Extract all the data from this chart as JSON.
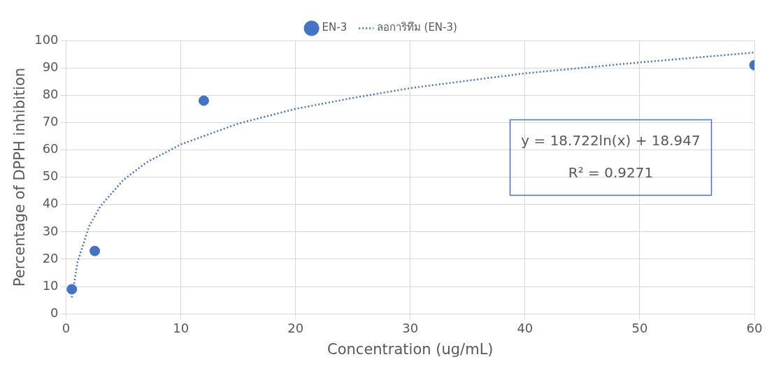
{
  "chart_data": {
    "type": "scatter",
    "xlabel": "Concentration (ug/mL)",
    "ylabel": "Percentage of DPPH inhibition",
    "xlim": [
      0,
      60
    ],
    "xticks": [
      0,
      10,
      20,
      30,
      40,
      50,
      60
    ],
    "ylim": [
      0,
      100
    ],
    "yticks": [
      0,
      10,
      20,
      30,
      40,
      50,
      60,
      70,
      80,
      90,
      100
    ],
    "grid": true,
    "legend": "top",
    "annotations": [
      "y = 18.722ln(x) + 18.947",
      "R² = 0.9271"
    ],
    "series": [
      {
        "name": "EN-3",
        "type": "scatter",
        "color": "#4472c4",
        "marker": "circle",
        "x": [
          0.5,
          2.5,
          12,
          60
        ],
        "values": [
          9,
          23,
          78,
          91
        ]
      },
      {
        "name": "ลอการิทึม (EN-3)",
        "type": "line",
        "color": "#4472c4",
        "marker": "none",
        "line_style": "dotted",
        "x": [
          0.5,
          1,
          2,
          3,
          5,
          7,
          10,
          15,
          20,
          25,
          30,
          40,
          50,
          60
        ],
        "values": [
          6,
          19,
          32,
          39.5,
          49,
          55.4,
          62,
          69.6,
          75,
          79,
          82.6,
          88,
          92,
          95.6
        ]
      }
    ]
  }
}
